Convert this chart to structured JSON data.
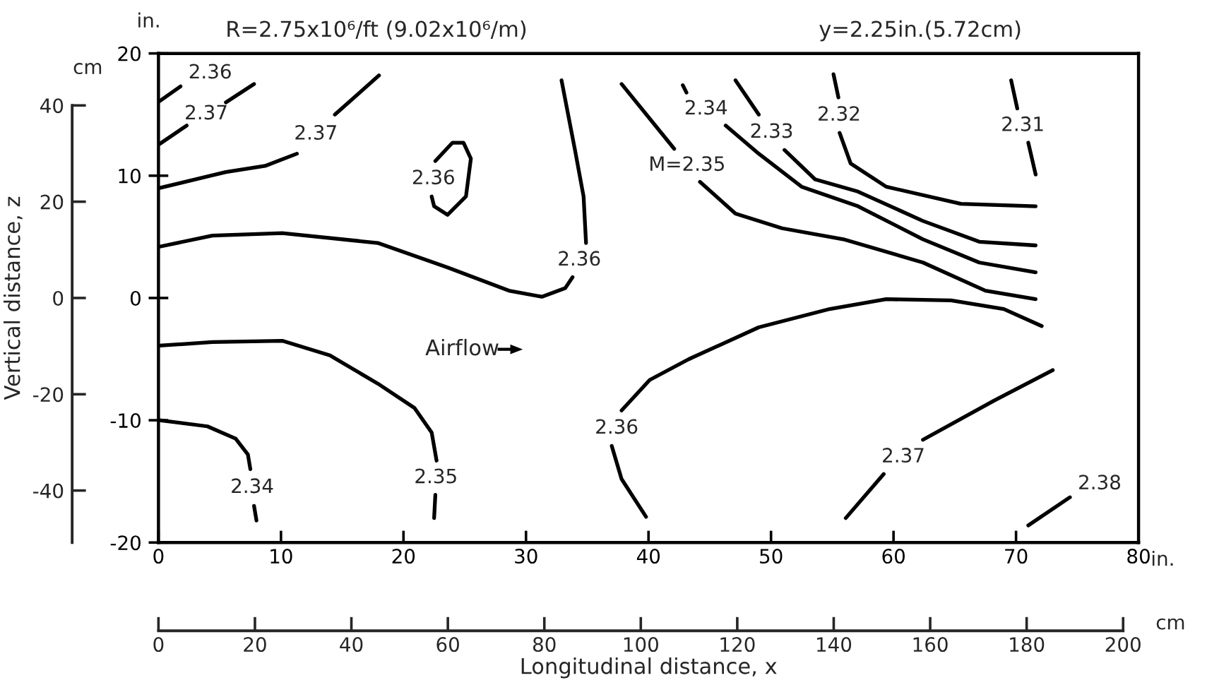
{
  "chart_data": {
    "type": "line",
    "title": "R=2.75x10⁶/ft (9.02x10⁶/m)",
    "subtitle": "y=2.25in.(5.72cm)",
    "xlabel": "Longitudinal distance, x",
    "y2label": "Vertical distance, z",
    "xlim": [
      0,
      80
    ],
    "xticks": [
      0,
      10,
      20,
      30,
      40,
      50,
      60,
      70,
      80
    ],
    "ylim": [
      -20,
      20
    ],
    "yticks": [
      -20,
      -10,
      0,
      10,
      20
    ],
    "x2lim": [
      0,
      203.2
    ],
    "x2ticks": [
      0,
      20,
      40,
      60,
      80,
      100,
      120,
      140,
      160,
      180,
      200
    ],
    "y2lim": [
      -50.8,
      50.8
    ],
    "y2ticks": [
      -40,
      -20,
      0,
      20,
      40
    ],
    "legend": false,
    "grid": false,
    "series": [
      {
        "name": "2.36",
        "color": "#000000",
        "x": [
          0.1,
          1.8
        ],
        "values": [
          16.1,
          17.3
        ]
      },
      {
        "name": "2.37",
        "color": "#000000",
        "x": [
          0.1,
          2.3,
          null,
          5.5,
          7.8
        ],
        "values": [
          12.6,
          14.1,
          null,
          16.0,
          17.5
        ]
      },
      {
        "name": "2.37",
        "color": "#000000",
        "x": [
          0.1,
          5.5,
          8.7,
          11.3,
          null,
          14.4,
          18.0
        ],
        "values": [
          9.0,
          10.3,
          10.8,
          11.8,
          null,
          15.0,
          18.2
        ]
      },
      {
        "name": "2.36",
        "color": "#000000",
        "x": [
          22.6,
          24.0,
          24.9,
          25.5,
          25.1,
          23.6,
          22.5,
          22.3
        ],
        "values": [
          11.2,
          12.7,
          12.7,
          11.4,
          8.3,
          6.8,
          7.5,
          8.3
        ]
      },
      {
        "name": "2.36",
        "color": "#000000",
        "x": [
          0.1,
          4.4,
          10.1,
          17.9,
          23.6,
          28.6,
          31.3,
          33.2,
          33.8,
          null,
          34.9,
          34.7,
          34.0,
          32.9
        ],
        "values": [
          4.2,
          5.1,
          5.3,
          4.5,
          2.5,
          0.6,
          0.1,
          0.8,
          1.7,
          null,
          4.5,
          8.3,
          12.1,
          17.8
        ]
      },
      {
        "name": "M=2.35",
        "color": "#000000",
        "x": [
          37.8,
          42.1,
          null,
          44.2,
          47.1,
          50.9,
          55.9,
          62.4,
          67.5,
          71.6
        ],
        "values": [
          17.5,
          12.2,
          null,
          9.5,
          6.9,
          5.7,
          4.8,
          2.9,
          0.6,
          -0.1
        ]
      },
      {
        "name": "2.34",
        "color": "#000000",
        "x": [
          42.8,
          43.1,
          null,
          46.3,
          49.0,
          52.5,
          57.1,
          62.4,
          67.0,
          71.6
        ],
        "values": [
          17.4,
          16.8,
          null,
          14.1,
          11.8,
          9.1,
          7.5,
          4.8,
          2.9,
          2.1
        ]
      },
      {
        "name": "2.33",
        "color": "#000000",
        "x": [
          47.1,
          49.0,
          null,
          51.1,
          53.6,
          57.1,
          62.4,
          67.0,
          71.6
        ],
        "values": [
          17.8,
          15.0,
          null,
          12.1,
          9.7,
          8.7,
          6.3,
          4.6,
          4.3
        ]
      },
      {
        "name": "2.32",
        "color": "#000000",
        "x": [
          55.1,
          55.5,
          null,
          55.6,
          56.5,
          59.4,
          65.5,
          71.6
        ],
        "values": [
          18.3,
          16.4,
          null,
          13.5,
          11.0,
          9.1,
          7.7,
          7.5
        ]
      },
      {
        "name": "2.31",
        "color": "#000000",
        "x": [
          69.6,
          70.1,
          null,
          71.0,
          71.6
        ],
        "values": [
          17.8,
          15.5,
          null,
          12.7,
          10.1
        ]
      },
      {
        "name": "2.36",
        "color": "#000000",
        "x": [
          72.1,
          69.0,
          64.7,
          59.4,
          54.8,
          49.0,
          43.3,
          40.1,
          37.8,
          null,
          37.0,
          37.8,
          39.8
        ],
        "values": [
          -2.3,
          -0.9,
          -0.2,
          -0.1,
          -0.9,
          -2.4,
          -5.0,
          -6.7,
          -9.2,
          null,
          -12.1,
          -14.8,
          -17.9
        ]
      },
      {
        "name": "2.37",
        "color": "#000000",
        "x": [
          56.1,
          59.2,
          null,
          62.4,
          68.2,
          73.0
        ],
        "values": [
          -18.0,
          -14.4,
          null,
          -11.6,
          -8.4,
          -5.9
        ]
      },
      {
        "name": "2.38",
        "color": "#000000",
        "x": [
          71.0,
          74.4
        ],
        "values": [
          -18.6,
          -16.3
        ]
      },
      {
        "name": "2.35",
        "color": "#000000",
        "x": [
          0.1,
          4.4,
          10.1,
          14.0,
          17.9,
          20.9,
          22.3,
          22.7,
          null,
          22.6,
          22.5
        ],
        "values": [
          -3.9,
          -3.6,
          -3.5,
          -4.7,
          -7.0,
          -9.0,
          -11.0,
          -13.3,
          null,
          -16.1,
          -18.0
        ]
      },
      {
        "name": "2.34",
        "color": "#000000",
        "x": [
          0.1,
          4.0,
          6.3,
          7.3,
          7.5,
          null,
          7.8,
          8.0
        ],
        "values": [
          -10.0,
          -10.5,
          -11.5,
          -12.8,
          -14.0,
          null,
          -17.0,
          -18.2
        ]
      }
    ],
    "annotations": [
      "Airflow",
      "in.",
      "cm",
      "in.",
      "cm"
    ]
  }
}
